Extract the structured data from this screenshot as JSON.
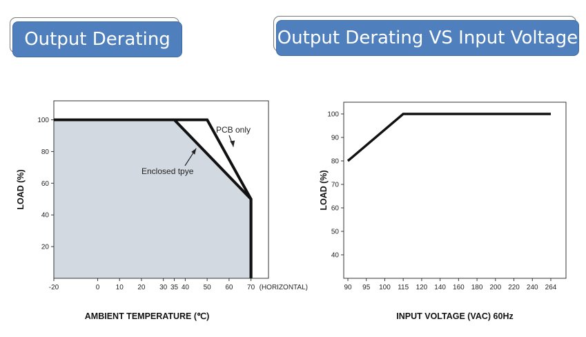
{
  "titles": {
    "left": "Output Derating",
    "right": "Output Derating VS Input Voltage"
  },
  "chart_data": [
    {
      "type": "line",
      "title": "Output Derating",
      "xlabel": "AMBIENT TEMPERATURE (℃)",
      "ylabel": "LOAD (%)",
      "x_ticks": [
        "-20",
        "0",
        "10",
        "20",
        "30",
        "35",
        "40",
        "50",
        "60",
        "70"
      ],
      "x_ticks_suffix": "(HORIZONTAL)",
      "y_ticks": [
        20,
        40,
        60,
        80,
        100
      ],
      "xlim": [
        -20,
        78
      ],
      "ylim": [
        0,
        112
      ],
      "grid": false,
      "shaded_series": "Enclosed tpye",
      "fill_color": "#d3d9e1",
      "series": [
        {
          "name": "Enclosed tpye",
          "x": [
            -20,
            35,
            70,
            70
          ],
          "y": [
            100,
            100,
            50,
            0
          ]
        },
        {
          "name": "PCB only",
          "x": [
            -20,
            50,
            70,
            70
          ],
          "y": [
            100,
            100,
            50,
            0
          ]
        }
      ],
      "annotations": [
        {
          "text": "PCB only",
          "target": [
            62,
            83
          ]
        },
        {
          "text": "Enclosed tpye",
          "target": [
            45,
            82
          ]
        }
      ]
    },
    {
      "type": "line",
      "title": "Output Derating VS Input Voltage",
      "xlabel": "INPUT VOLTAGE (VAC) 60Hz",
      "ylabel": "LOAD (%)",
      "x_ticks": [
        "90",
        "95",
        "100",
        "115",
        "120",
        "140",
        "160",
        "180",
        "200",
        "220",
        "240",
        "264"
      ],
      "y_ticks": [
        40,
        50,
        60,
        70,
        80,
        90,
        100
      ],
      "ylim": [
        30,
        105
      ],
      "grid": false,
      "series": [
        {
          "x": [
            "90",
            "115",
            "264"
          ],
          "y": [
            80,
            100,
            100
          ]
        }
      ]
    }
  ]
}
